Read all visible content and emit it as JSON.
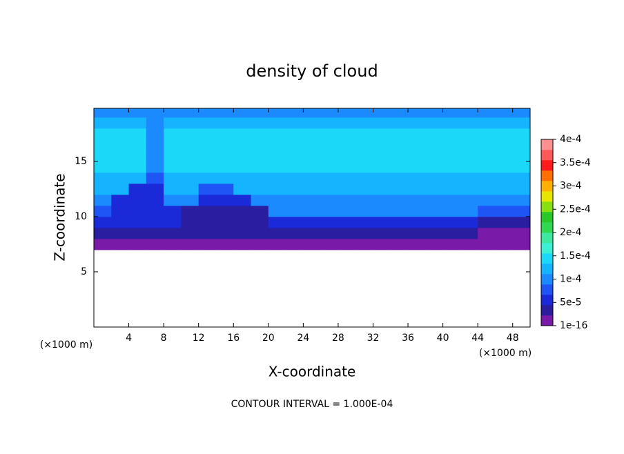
{
  "chart_data": {
    "type": "contour",
    "title": "density of cloud",
    "x_label": "X-coordinate",
    "y_label": "Z-coordinate",
    "x_unit": "(×1000 m)",
    "y_unit": "(×1000 m)",
    "footnote": "CONTOUR INTERVAL = 1.000E-04",
    "x": [
      1,
      3,
      5,
      7,
      9,
      11,
      13,
      15,
      17,
      19,
      21,
      23,
      25,
      27,
      29,
      31,
      33,
      35,
      37,
      39,
      41,
      43,
      45,
      47,
      49
    ],
    "y": [
      7.5,
      8.5,
      9.5,
      10.5,
      11.5,
      12.5,
      13.5,
      14.5,
      15.5,
      16.5,
      17.5,
      18.5,
      19.5
    ],
    "z": [
      [
        1.5e-05,
        1.5e-05,
        1.5e-05,
        1.5e-05,
        1.5e-05,
        1.5e-05,
        1.5e-05,
        1.5e-05,
        1.5e-05,
        1.5e-05,
        1.5e-05,
        1.5e-05,
        1.5e-05,
        1.5e-05,
        1.5e-05,
        1.5e-05,
        1.5e-05,
        1.5e-05,
        1.5e-05,
        1.5e-05,
        1.5e-05,
        1.5e-05,
        1.5e-05,
        1.5e-05,
        1.5e-05
      ],
      [
        3.5e-05,
        3.5e-05,
        3.5e-05,
        3.5e-05,
        3.5e-05,
        3.5e-05,
        3.5e-05,
        3.5e-05,
        3.5e-05,
        3.5e-05,
        3.5e-05,
        3.5e-05,
        3.5e-05,
        3.5e-05,
        3.5e-05,
        3.5e-05,
        3.5e-05,
        3.5e-05,
        3.5e-05,
        3.5e-05,
        3.5e-05,
        3.5e-05,
        1.5e-05,
        1.5e-05,
        1.5e-05
      ],
      [
        5e-05,
        5e-05,
        5e-05,
        5e-05,
        5e-05,
        4e-05,
        4e-05,
        4e-05,
        4e-05,
        4e-05,
        6e-05,
        6e-05,
        6e-05,
        6e-05,
        6e-05,
        6e-05,
        6e-05,
        6e-05,
        6e-05,
        6e-05,
        6e-05,
        6e-05,
        4e-05,
        4e-05,
        4e-05
      ],
      [
        8e-05,
        4.5e-05,
        4.5e-05,
        4.5e-05,
        4.5e-05,
        4e-05,
        4e-05,
        4e-05,
        4e-05,
        4e-05,
        9e-05,
        9e-05,
        9e-05,
        9e-05,
        9e-05,
        9e-05,
        9e-05,
        9e-05,
        9e-05,
        9e-05,
        9e-05,
        9e-05,
        7e-05,
        7e-05,
        7e-05
      ],
      [
        0.0001,
        5e-05,
        5e-05,
        5e-05,
        9e-05,
        9e-05,
        6e-05,
        6e-05,
        6e-05,
        0.0001,
        0.000105,
        0.000105,
        0.000105,
        0.000105,
        0.000105,
        0.000105,
        0.000105,
        0.000105,
        0.000105,
        0.000105,
        0.000105,
        0.000105,
        0.000105,
        0.000105,
        0.000105
      ],
      [
        0.00012,
        0.00012,
        6e-05,
        6e-05,
        0.00012,
        0.00012,
        8e-05,
        8e-05,
        0.00012,
        0.00012,
        0.00012,
        0.00012,
        0.00012,
        0.00012,
        0.00012,
        0.00012,
        0.00012,
        0.00012,
        0.00012,
        0.00012,
        0.00012,
        0.00012,
        0.00012,
        0.00012,
        0.00012
      ],
      [
        0.00013,
        0.00013,
        0.00013,
        8e-05,
        0.00013,
        0.00013,
        0.00013,
        0.00013,
        0.00013,
        0.00013,
        0.00013,
        0.00013,
        0.00013,
        0.00013,
        0.00013,
        0.00013,
        0.00013,
        0.00013,
        0.00013,
        0.00013,
        0.00013,
        0.00013,
        0.00013,
        0.00013,
        0.00013
      ],
      [
        0.000145,
        0.000145,
        0.000145,
        0.00011,
        0.000145,
        0.000145,
        0.000145,
        0.000145,
        0.000145,
        0.000145,
        0.000145,
        0.000145,
        0.000145,
        0.000145,
        0.000145,
        0.000145,
        0.000145,
        0.000145,
        0.000145,
        0.000145,
        0.000145,
        0.000145,
        0.000145,
        0.000145,
        0.000145
      ],
      [
        0.000145,
        0.000145,
        0.000145,
        0.00011,
        0.000145,
        0.000145,
        0.000145,
        0.000145,
        0.000145,
        0.000145,
        0.000145,
        0.000145,
        0.000145,
        0.000145,
        0.000145,
        0.000145,
        0.000145,
        0.000145,
        0.000145,
        0.000145,
        0.000145,
        0.000145,
        0.000145,
        0.000145,
        0.000145
      ],
      [
        0.000145,
        0.000145,
        0.000145,
        0.00011,
        0.000145,
        0.000145,
        0.000145,
        0.000145,
        0.000145,
        0.000145,
        0.000145,
        0.000145,
        0.000145,
        0.000145,
        0.000145,
        0.000145,
        0.000145,
        0.000145,
        0.000145,
        0.000145,
        0.000145,
        0.000145,
        0.000145,
        0.000145,
        0.000145
      ],
      [
        0.000135,
        0.000135,
        0.000135,
        0.000105,
        0.000135,
        0.000135,
        0.000135,
        0.000135,
        0.000135,
        0.000135,
        0.000135,
        0.000135,
        0.000135,
        0.000135,
        0.000135,
        0.000135,
        0.000135,
        0.000135,
        0.000135,
        0.000135,
        0.000135,
        0.000135,
        0.000135,
        0.000135,
        0.000135
      ],
      [
        0.00012,
        0.00012,
        0.00012,
        0.0001,
        0.00012,
        0.00012,
        0.00012,
        0.00012,
        0.00012,
        0.00012,
        0.00012,
        0.00012,
        0.00012,
        0.00012,
        0.00012,
        0.00012,
        0.00012,
        0.00012,
        0.00012,
        0.00012,
        0.00012,
        0.00012,
        0.00012,
        0.00012,
        0.00012
      ],
      [
        0.00011,
        0.00011,
        0.00011,
        9.5e-05,
        0.00011,
        0.00011,
        0.00011,
        0.00011,
        0.00011,
        0.00011,
        0.00011,
        0.00011,
        0.00011,
        0.00011,
        0.00011,
        0.00011,
        0.00011,
        0.00011,
        0.00011,
        0.00011,
        0.00011,
        0.00011,
        0.00011,
        0.00011,
        0.00011
      ]
    ],
    "xlim": [
      0,
      50
    ],
    "xticks": [
      4,
      8,
      12,
      16,
      20,
      24,
      28,
      32,
      36,
      40,
      44,
      48
    ],
    "ylim": [
      0,
      19.8
    ],
    "yticks": [
      5,
      10,
      15
    ],
    "clim": [
      1e-16,
      0.0004
    ],
    "cticks": [
      {
        "value": 1e-16,
        "label": "1e-16"
      },
      {
        "value": 5e-05,
        "label": "5e-5"
      },
      {
        "value": 0.0001,
        "label": "1e-4"
      },
      {
        "value": 0.00015,
        "label": "1.5e-4"
      },
      {
        "value": 0.0002,
        "label": "2e-4"
      },
      {
        "value": 0.00025,
        "label": "2.5e-4"
      },
      {
        "value": 0.0003,
        "label": "3e-4"
      },
      {
        "value": 0.00035,
        "label": "3.5e-4"
      },
      {
        "value": 0.0004,
        "label": "4e-4"
      }
    ],
    "colors": [
      "#7a1aa8",
      "#2a1ea0",
      "#1a2ad8",
      "#1f55f5",
      "#1b8aff",
      "#14b4ff",
      "#1cd8f8",
      "#3cf0d4",
      "#3ee8a0",
      "#30d850",
      "#28c828",
      "#88e010",
      "#e6e600",
      "#ffb000",
      "#ff7000",
      "#ff1a1a",
      "#ff5858",
      "#ff9090"
    ]
  }
}
